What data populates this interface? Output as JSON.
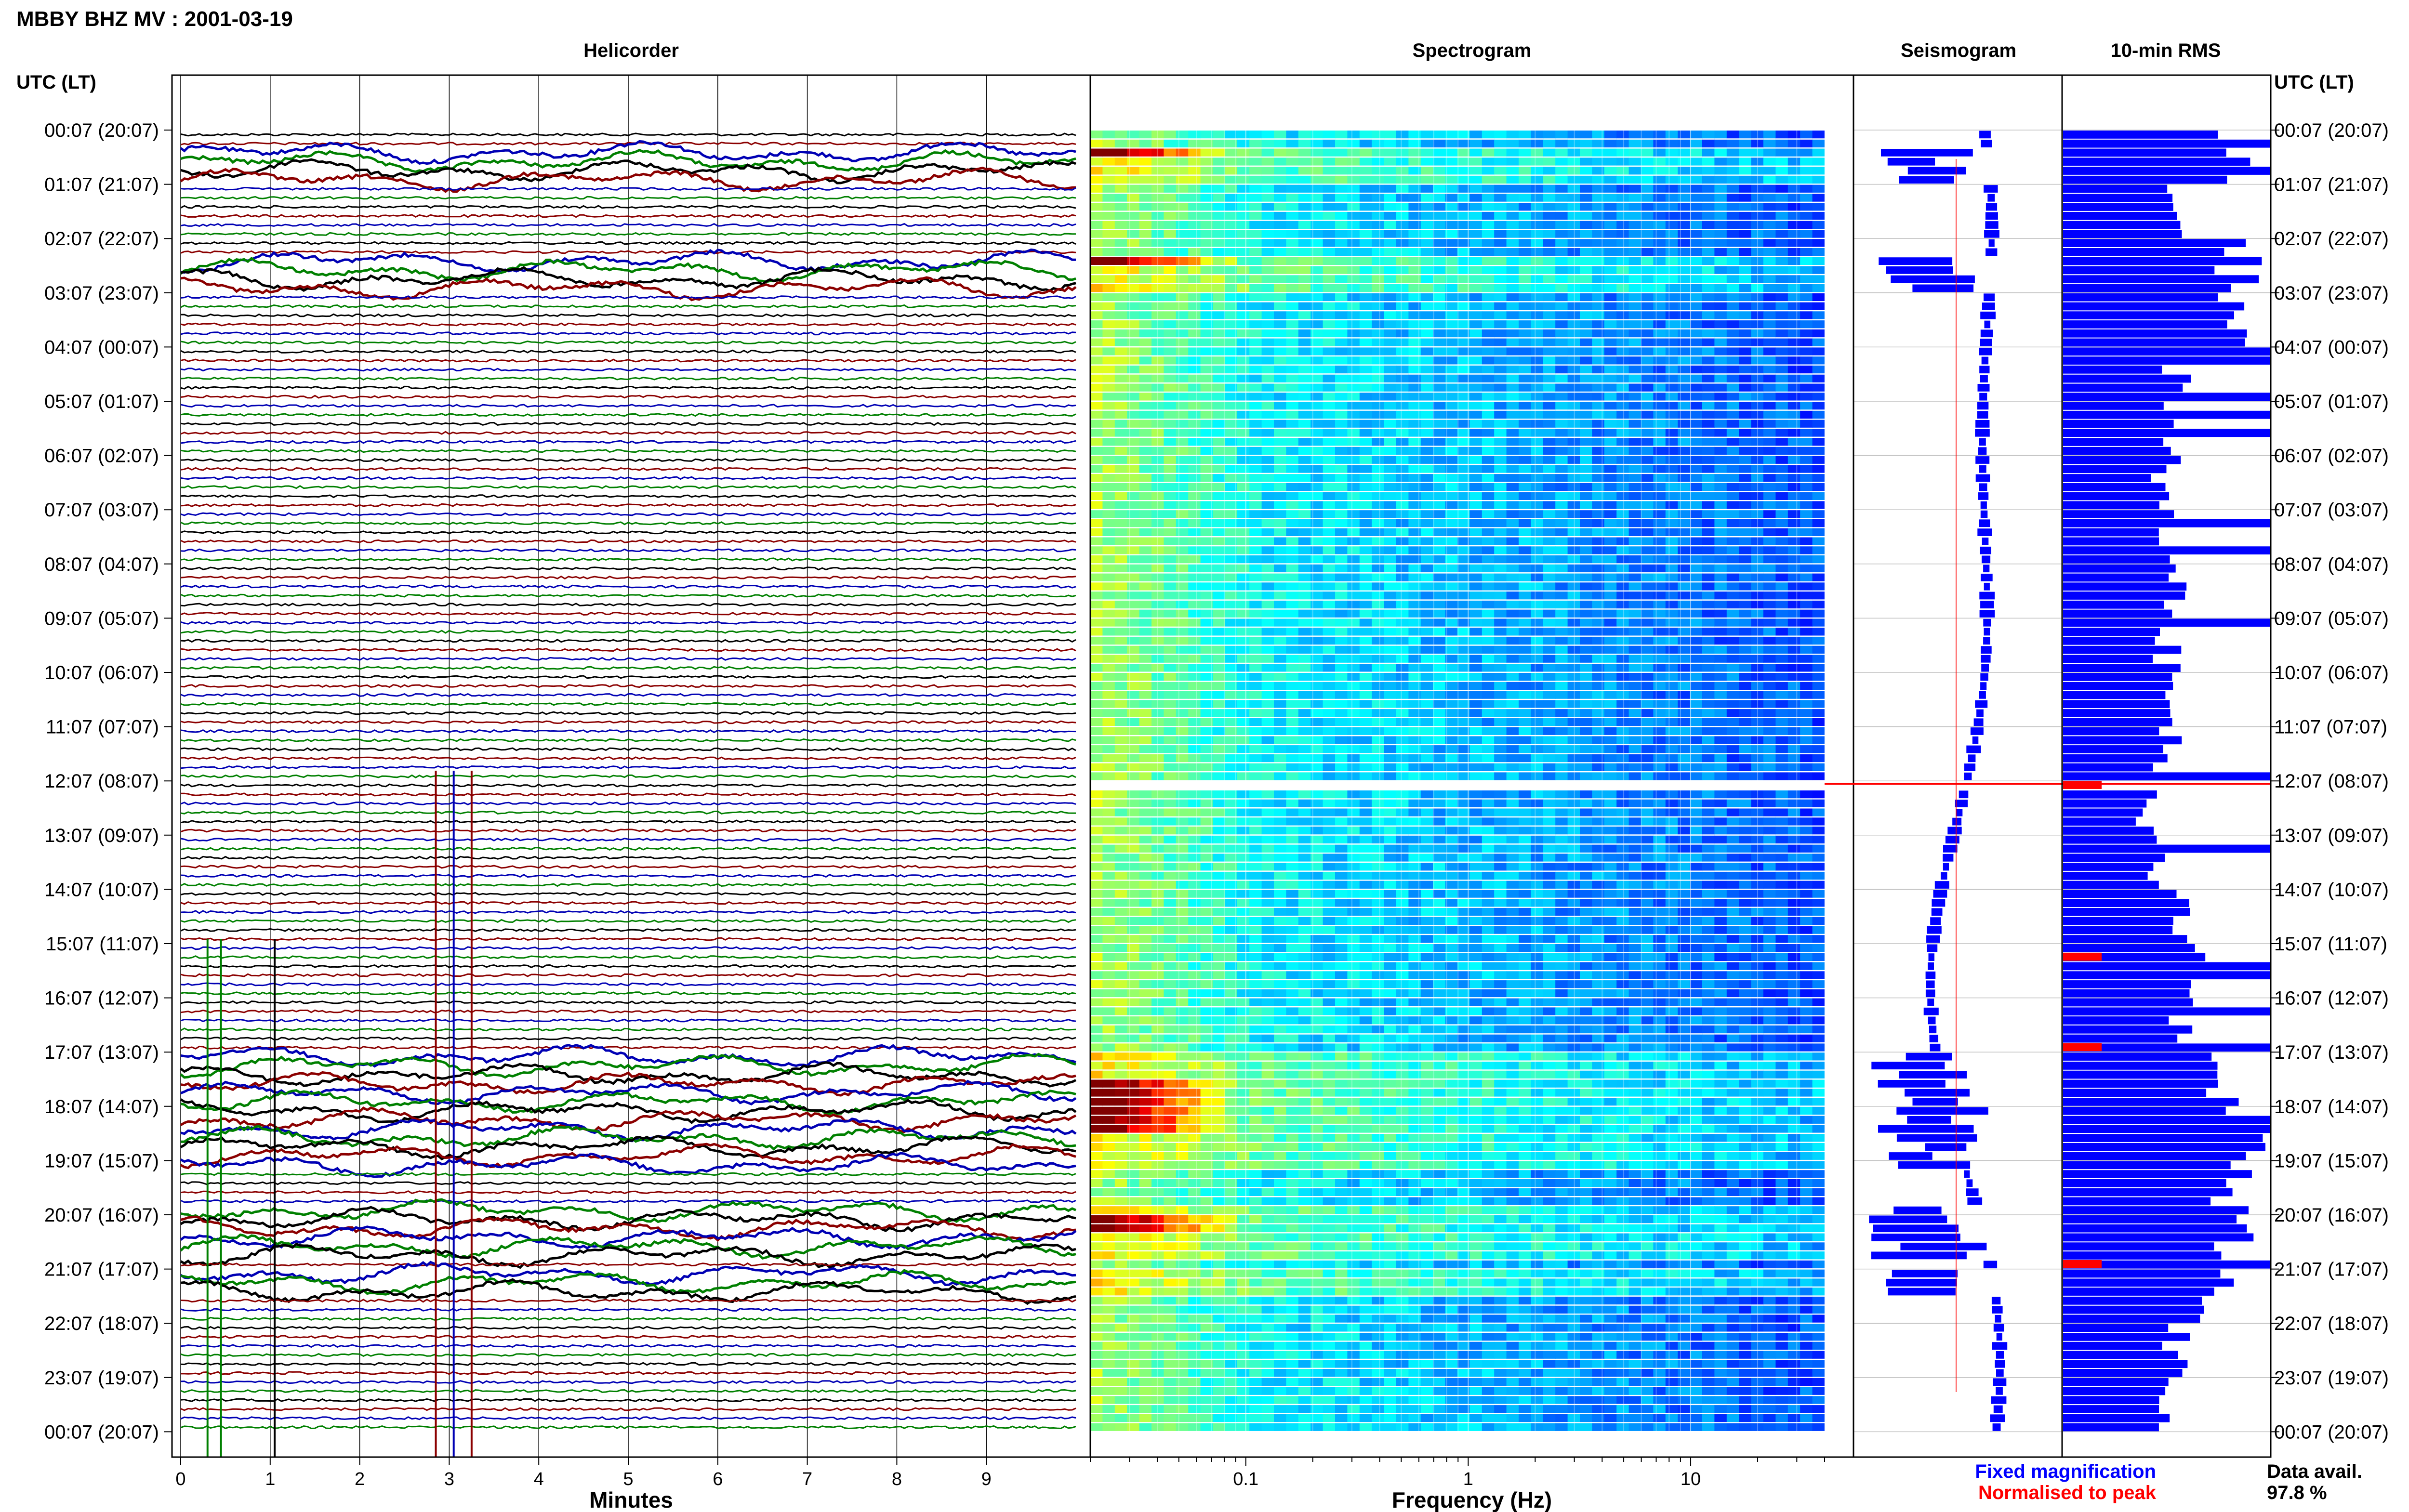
{
  "header": {
    "station_title": "MBBY BHZ MV : 2001-03-19"
  },
  "panel_titles": {
    "helicorder": "Helicorder",
    "spectrogram": "Spectrogram",
    "seismogram": "Seismogram",
    "rms": "10-min RMS"
  },
  "axis_labels": {
    "left_header": "UTC (LT)",
    "right_header": "UTC (LT)",
    "helicorder_x": "Minutes",
    "spectrogram_x": "Frequency (Hz)"
  },
  "time_labels": [
    "00:07 (20:07)",
    "01:07 (21:07)",
    "02:07 (22:07)",
    "03:07 (23:07)",
    "04:07 (00:07)",
    "05:07 (01:07)",
    "06:07 (02:07)",
    "07:07 (03:07)",
    "08:07 (04:07)",
    "09:07 (05:07)",
    "10:07 (06:07)",
    "11:07 (07:07)",
    "12:07 (08:07)",
    "13:07 (09:07)",
    "14:07 (10:07)",
    "15:07 (11:07)",
    "16:07 (12:07)",
    "17:07 (13:07)",
    "18:07 (14:07)",
    "19:07 (15:07)",
    "20:07 (16:07)",
    "21:07 (17:07)",
    "22:07 (18:07)",
    "23:07 (19:07)",
    "00:07 (20:07)"
  ],
  "legend": {
    "fixed": "Fixed magnification",
    "normalised": "Normalised to peak",
    "fixed_color": "#0000ff",
    "normalised_color": "#ff0000"
  },
  "availability": {
    "label": "Data avail.",
    "value": "97.8 %"
  },
  "colors": {
    "trace_cycle": [
      "#000000",
      "#8b0000",
      "#0000b4",
      "#008000"
    ],
    "rms_bar": "#0000ff",
    "rms_peak": "#ff0000",
    "gap_line": "#ff0000"
  },
  "chart_data": [
    {
      "type": "line",
      "title": "Helicorder",
      "xlabel": "Minutes",
      "ylabel": "UTC (LT)",
      "xlim": [
        0,
        10
      ],
      "x_ticks": [
        "0",
        "1",
        "2",
        "3",
        "4",
        "5",
        "6",
        "7",
        "8",
        "9"
      ],
      "rows_per_hour": 6,
      "hours": 24,
      "trace_color_cycle": [
        "black",
        "dark red",
        "blue",
        "green"
      ],
      "active_periods_utc": [
        "00:15-01:00",
        "02:15-03:00",
        "17:00-19:10",
        "19:45-20:45",
        "21:00-21:30"
      ]
    },
    {
      "type": "heatmap",
      "title": "Spectrogram",
      "xlabel": "Frequency (Hz)",
      "x_scale": "log",
      "xlim": [
        0.02,
        40
      ],
      "x_ticks": [
        "0.1",
        "1",
        "10"
      ],
      "colormap": "jet",
      "data_gap_utc": "12:00-12:07",
      "high_power_low_freq_utc": [
        "00:15-00:30",
        "02:15-02:30",
        "17:30-18:30",
        "20:00-20:15"
      ]
    },
    {
      "type": "line",
      "title": "Seismogram",
      "series": [
        {
          "name": "Fixed magnification",
          "color": "blue"
        },
        {
          "name": "Normalised to peak",
          "color": "red"
        }
      ]
    },
    {
      "type": "bar",
      "title": "10-min RMS",
      "orientation": "horizontal",
      "bars_per_hour": 6,
      "relative_amplitude_by_hour_utc": [
        0.88,
        0.52,
        0.85,
        0.86,
        0.55,
        0.5,
        0.5,
        0.52,
        0.52,
        0.5,
        0.5,
        0.5,
        0.4,
        0.45,
        0.58,
        0.62,
        0.6,
        0.8,
        0.9,
        0.8,
        0.85,
        0.72,
        0.55,
        0.5
      ],
      "peak_markers_utc": [
        "12:00",
        "15:10",
        "16:50",
        "20:50"
      ]
    }
  ]
}
